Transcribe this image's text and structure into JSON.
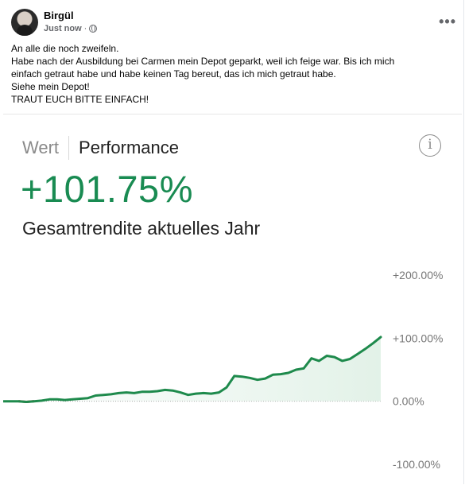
{
  "post": {
    "author": "Birgül",
    "time": "Just now",
    "separator": "·",
    "privacy_icon": "globe-icon",
    "more_icon": "more-horizontal-icon",
    "lines": [
      "An alle die noch zweifeln.",
      "Habe nach der Ausbildung bei Carmen mein Depot geparkt, weil ich feige war. Bis ich mich",
      "einfach getraut habe und habe keinen Tag bereut, das ich mich getraut habe.",
      "Siehe mein Depot!",
      "TRAUT EUCH BITTE EINFACH!"
    ]
  },
  "depot": {
    "tab_wert": "Wert",
    "tab_performance": "Performance",
    "info_icon": "info-icon",
    "info_symbol": "i",
    "performance_value": "+101.75%",
    "subtitle": "Gesamtrendite aktuelles Jahr"
  },
  "colors": {
    "accent_green": "#198b52",
    "line_green": "#1e8a4c",
    "negative_red": "#b23a3a"
  },
  "chart_data": {
    "type": "area",
    "ylim": [
      -100,
      200
    ],
    "yticks": [
      200,
      100,
      0,
      -100
    ],
    "ytick_labels": [
      "+200.00%",
      "+100.00%",
      "0.00%",
      "-100.00%"
    ],
    "series": [
      {
        "values": [
          0,
          0,
          0,
          -1,
          0,
          1,
          3,
          3,
          2,
          3,
          4,
          5,
          9,
          10,
          11,
          13,
          14,
          13,
          15,
          15,
          16,
          18,
          17,
          14,
          10,
          12,
          13,
          12,
          14,
          22,
          40,
          39,
          37,
          34,
          36,
          42,
          43,
          45,
          50,
          52,
          68,
          64,
          72,
          70,
          64,
          67,
          75,
          83,
          92,
          101.75
        ]
      }
    ]
  }
}
